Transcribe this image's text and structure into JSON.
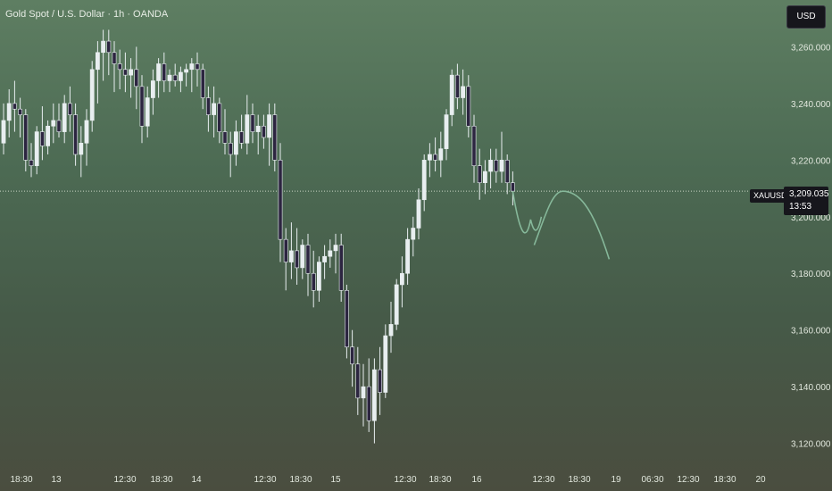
{
  "header": {
    "title": "Gold Spot / U.S. Dollar · 1h · OANDA",
    "currency": "USD"
  },
  "price_tag": {
    "symbol": "XAUUSD",
    "price": "3,209.035",
    "countdown": "13:53"
  },
  "colors": {
    "up": "#e8eef0",
    "down": "#2c2540",
    "wick": "#e8eef0",
    "projection": "#86b89a",
    "price_line": "#c9d4c4"
  },
  "chart_data": {
    "type": "candlestick",
    "ylim": [
      3112,
      3274
    ],
    "y_ticks": [
      "3,260.000",
      "3,240.000",
      "3,220.000",
      "3,200.000",
      "3,180.000",
      "3,160.000",
      "3,140.000",
      "3,120.000"
    ],
    "y_tick_values": [
      3260,
      3240,
      3220,
      3200,
      3180,
      3160,
      3140,
      3120
    ],
    "x_ticks": [
      "18:30",
      "13",
      "12:30",
      "18:30",
      "14",
      "12:30",
      "18:30",
      "15",
      "12:30",
      "18:30",
      "16",
      "12:30",
      "18:30",
      "19",
      "06:30",
      "12:30",
      "18:30",
      "20"
    ],
    "last_price": 3209.035,
    "ohlc": [
      [
        3226,
        3240,
        3222,
        3234
      ],
      [
        3234,
        3245,
        3228,
        3240
      ],
      [
        3240,
        3248,
        3230,
        3238
      ],
      [
        3238,
        3242,
        3228,
        3236
      ],
      [
        3236,
        3238,
        3216,
        3220
      ],
      [
        3220,
        3226,
        3214,
        3218
      ],
      [
        3218,
        3232,
        3215,
        3230
      ],
      [
        3230,
        3239,
        3220,
        3225
      ],
      [
        3225,
        3234,
        3222,
        3232
      ],
      [
        3232,
        3240,
        3226,
        3234
      ],
      [
        3234,
        3240,
        3228,
        3230
      ],
      [
        3230,
        3243,
        3226,
        3240
      ],
      [
        3240,
        3246,
        3230,
        3236
      ],
      [
        3236,
        3240,
        3218,
        3222
      ],
      [
        3222,
        3232,
        3214,
        3226
      ],
      [
        3226,
        3238,
        3218,
        3234
      ],
      [
        3234,
        3255,
        3230,
        3252
      ],
      [
        3252,
        3262,
        3240,
        3258
      ],
      [
        3258,
        3266,
        3248,
        3262
      ],
      [
        3262,
        3266,
        3250,
        3258
      ],
      [
        3258,
        3262,
        3244,
        3254
      ],
      [
        3254,
        3259,
        3245,
        3252
      ],
      [
        3252,
        3258,
        3244,
        3250
      ],
      [
        3250,
        3256,
        3242,
        3252
      ],
      [
        3252,
        3260,
        3238,
        3246
      ],
      [
        3246,
        3250,
        3226,
        3232
      ],
      [
        3232,
        3246,
        3228,
        3242
      ],
      [
        3242,
        3252,
        3236,
        3248
      ],
      [
        3248,
        3256,
        3242,
        3254
      ],
      [
        3254,
        3258,
        3244,
        3248
      ],
      [
        3248,
        3252,
        3244,
        3250
      ],
      [
        3250,
        3254,
        3246,
        3248
      ],
      [
        3248,
        3253,
        3244,
        3251
      ],
      [
        3251,
        3254,
        3246,
        3252
      ],
      [
        3252,
        3256,
        3244,
        3254
      ],
      [
        3254,
        3258,
        3246,
        3252
      ],
      [
        3252,
        3254,
        3238,
        3242
      ],
      [
        3242,
        3246,
        3230,
        3236
      ],
      [
        3236,
        3246,
        3228,
        3240
      ],
      [
        3240,
        3242,
        3226,
        3230
      ],
      [
        3230,
        3238,
        3222,
        3226
      ],
      [
        3226,
        3230,
        3214,
        3222
      ],
      [
        3222,
        3234,
        3218,
        3230
      ],
      [
        3230,
        3236,
        3224,
        3226
      ],
      [
        3226,
        3243,
        3222,
        3236
      ],
      [
        3236,
        3240,
        3226,
        3230
      ],
      [
        3230,
        3236,
        3222,
        3232
      ],
      [
        3232,
        3236,
        3224,
        3228
      ],
      [
        3228,
        3240,
        3218,
        3236
      ],
      [
        3236,
        3240,
        3216,
        3220
      ],
      [
        3220,
        3226,
        3184,
        3192
      ],
      [
        3192,
        3196,
        3174,
        3184
      ],
      [
        3184,
        3198,
        3178,
        3188
      ],
      [
        3188,
        3196,
        3176,
        3182
      ],
      [
        3182,
        3192,
        3178,
        3190
      ],
      [
        3190,
        3194,
        3172,
        3180
      ],
      [
        3180,
        3188,
        3168,
        3174
      ],
      [
        3174,
        3186,
        3170,
        3184
      ],
      [
        3184,
        3190,
        3178,
        3186
      ],
      [
        3186,
        3192,
        3182,
        3188
      ],
      [
        3188,
        3194,
        3180,
        3190
      ],
      [
        3190,
        3194,
        3170,
        3174
      ],
      [
        3174,
        3176,
        3150,
        3154
      ],
      [
        3154,
        3160,
        3140,
        3148
      ],
      [
        3148,
        3154,
        3130,
        3136
      ],
      [
        3136,
        3148,
        3126,
        3140
      ],
      [
        3140,
        3150,
        3124,
        3128
      ],
      [
        3128,
        3150,
        3120,
        3146
      ],
      [
        3146,
        3154,
        3130,
        3138
      ],
      [
        3138,
        3162,
        3136,
        3158
      ],
      [
        3158,
        3170,
        3152,
        3162
      ],
      [
        3162,
        3178,
        3160,
        3176
      ],
      [
        3176,
        3186,
        3168,
        3180
      ],
      [
        3180,
        3196,
        3176,
        3192
      ],
      [
        3192,
        3200,
        3186,
        3196
      ],
      [
        3196,
        3210,
        3192,
        3206
      ],
      [
        3206,
        3222,
        3202,
        3220
      ],
      [
        3220,
        3226,
        3214,
        3222
      ],
      [
        3222,
        3228,
        3216,
        3220
      ],
      [
        3220,
        3230,
        3214,
        3224
      ],
      [
        3224,
        3238,
        3220,
        3236
      ],
      [
        3236,
        3252,
        3232,
        3250
      ],
      [
        3250,
        3254,
        3238,
        3242
      ],
      [
        3242,
        3252,
        3236,
        3246
      ],
      [
        3246,
        3250,
        3228,
        3232
      ],
      [
        3232,
        3236,
        3212,
        3218
      ],
      [
        3218,
        3224,
        3206,
        3212
      ],
      [
        3212,
        3220,
        3208,
        3216
      ],
      [
        3216,
        3224,
        3210,
        3220
      ],
      [
        3220,
        3224,
        3212,
        3216
      ],
      [
        3216,
        3230,
        3212,
        3220
      ],
      [
        3220,
        3222,
        3208,
        3212
      ],
      [
        3212,
        3216,
        3204,
        3209.035
      ]
    ],
    "projection": [
      [
        3209,
        3194
      ],
      [
        3199,
        3191
      ],
      [
        3200,
        3204
      ],
      [
        3204,
        3207
      ],
      [
        3207,
        3203
      ],
      [
        3203,
        3185
      ]
    ]
  }
}
